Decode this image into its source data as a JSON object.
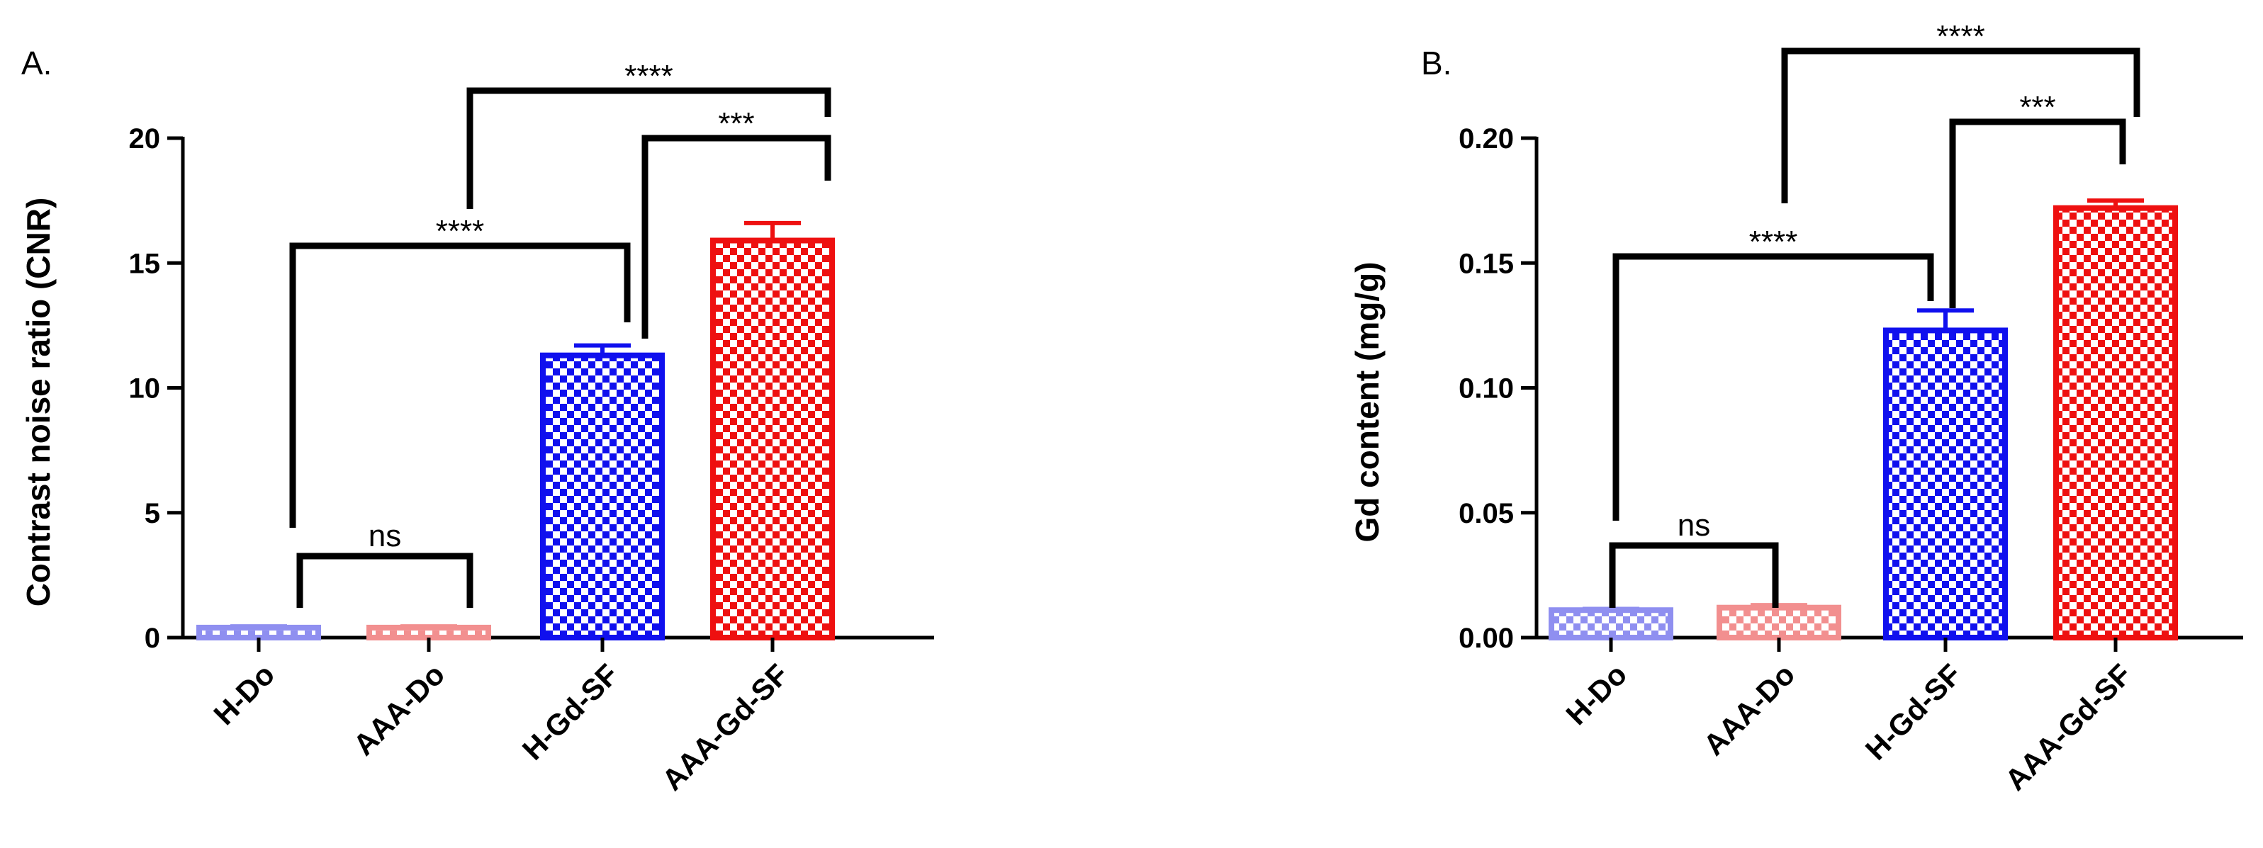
{
  "chart_data": [
    {
      "panel": "A.",
      "type": "bar",
      "ylabel": "Contrast noise ratio (CNR)",
      "ylim": [
        0,
        20
      ],
      "yticks": [
        "0",
        "5",
        "10",
        "15",
        "20"
      ],
      "categories": [
        "H-Do",
        "AAA-Do",
        "H-Gd-SF",
        "AAA-Gd-SF"
      ],
      "values": [
        0.4,
        0.4,
        11.3,
        15.9
      ],
      "errors": [
        0.05,
        0.05,
        0.4,
        0.7
      ],
      "colors": [
        "#8f8ff0",
        "#f28f8f",
        "#1010ee",
        "#ee1010"
      ],
      "significance": [
        {
          "from": 0,
          "to": 1,
          "label": "ns"
        },
        {
          "from": 0,
          "to": 2,
          "label": "****"
        },
        {
          "from": 2,
          "to": 3,
          "label": "***"
        },
        {
          "from": 1,
          "to": 3,
          "label": "****"
        }
      ]
    },
    {
      "panel": "B.",
      "type": "bar",
      "ylabel": "Gd content (mg/g)",
      "ylim": [
        0,
        0.2
      ],
      "yticks": [
        "0.00",
        "0.05",
        "0.10",
        "0.15",
        "0.20"
      ],
      "categories": [
        "H-Do",
        "AAA-Do",
        "H-Gd-SF",
        "AAA-Gd-SF"
      ],
      "values": [
        0.011,
        0.012,
        0.123,
        0.172
      ],
      "errors": [
        0.0005,
        0.001,
        0.008,
        0.003
      ],
      "colors": [
        "#8f8ff0",
        "#f28f8f",
        "#1010ee",
        "#ee1010"
      ],
      "significance": [
        {
          "from": 0,
          "to": 1,
          "label": "ns"
        },
        {
          "from": 0,
          "to": 2,
          "label": "****"
        },
        {
          "from": 2,
          "to": 3,
          "label": "***"
        },
        {
          "from": 1,
          "to": 3,
          "label": "****"
        }
      ]
    }
  ]
}
